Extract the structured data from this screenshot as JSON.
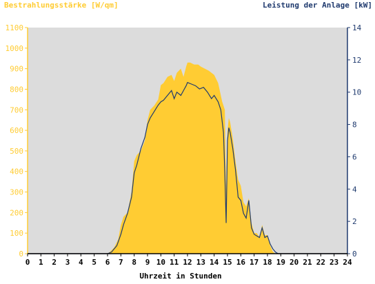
{
  "chart_data": {
    "type": "area",
    "left_axis_label": "Bestrahlungsstärke [W/qm]",
    "right_axis_label": "Leistung der Anlage [kW]",
    "xlabel": "Uhrzeit in Stunden",
    "xlim": [
      0,
      24
    ],
    "x_ticks": [
      "0",
      "1",
      "2",
      "3",
      "4",
      "5",
      "6",
      "7",
      "8",
      "9",
      "10",
      "11",
      "12",
      "13",
      "14",
      "15",
      "16",
      "17",
      "18",
      "19",
      "20",
      "21",
      "22",
      "23",
      "24"
    ],
    "left_ylim": [
      0,
      1100
    ],
    "left_ticks": [
      "0",
      "100",
      "200",
      "300",
      "400",
      "500",
      "600",
      "700",
      "800",
      "900",
      "1000",
      "1100"
    ],
    "right_ylim": [
      0,
      14
    ],
    "right_ticks": [
      "0",
      "2",
      "4",
      "6",
      "8",
      "10",
      "12",
      "14"
    ],
    "plot_background": "#dcdcdc",
    "colors": {
      "irradiance": "#ffcc33",
      "power": "#1f3a6e",
      "left_axis": "#ffcc33",
      "right_axis": "#1f3a6e"
    },
    "series": [
      {
        "axis": "left",
        "x": [
          0,
          6,
          6.2,
          6.5,
          6.8,
          7,
          7.2,
          7.5,
          7.8,
          8,
          8.2,
          8.5,
          8.8,
          9,
          9.2,
          9.5,
          9.8,
          10,
          10.2,
          10.5,
          10.8,
          11,
          11.2,
          11.5,
          11.7,
          11.9,
          12,
          12.2,
          12.5,
          12.8,
          13,
          13.3,
          13.6,
          14,
          14.3,
          14.6,
          14.8,
          14.9,
          15,
          15.1,
          15.2,
          15.4,
          15.6,
          15.8,
          16,
          16.2,
          16.4,
          16.6,
          16.8,
          17,
          17.2,
          17.4,
          17.6,
          17.8,
          18,
          18.2,
          18.4,
          18.6,
          18.8,
          19,
          24
        ],
        "values": [
          0,
          0,
          10,
          30,
          70,
          140,
          180,
          200,
          300,
          450,
          480,
          500,
          550,
          650,
          700,
          720,
          750,
          820,
          830,
          860,
          870,
          840,
          880,
          900,
          860,
          910,
          930,
          930,
          920,
          920,
          910,
          900,
          890,
          870,
          830,
          740,
          700,
          300,
          600,
          660,
          640,
          560,
          450,
          360,
          330,
          250,
          230,
          270,
          150,
          100,
          100,
          80,
          140,
          90,
          90,
          40,
          10,
          0,
          0,
          0,
          0
        ]
      },
      {
        "axis": "right",
        "x": [
          0,
          6,
          6.3,
          6.7,
          7,
          7.2,
          7.5,
          7.8,
          8,
          8.2,
          8.5,
          8.8,
          9,
          9.2,
          9.5,
          9.8,
          10,
          10.2,
          10.5,
          10.8,
          11,
          11.2,
          11.5,
          11.7,
          11.9,
          12,
          12.3,
          12.6,
          12.9,
          13.2,
          13.5,
          13.8,
          14,
          14.3,
          14.5,
          14.7,
          14.8,
          14.9,
          15,
          15.1,
          15.2,
          15.4,
          15.6,
          15.8,
          16,
          16.2,
          16.4,
          16.6,
          16.8,
          17,
          17.2,
          17.4,
          17.6,
          17.8,
          18,
          18.2,
          18.4,
          18.6,
          18.8,
          19,
          24
        ],
        "values": [
          0,
          0,
          0.1,
          0.5,
          1.2,
          1.8,
          2.5,
          3.5,
          5,
          5.5,
          6.5,
          7.2,
          8,
          8.4,
          8.8,
          9.2,
          9.4,
          9.5,
          9.8,
          10.1,
          9.6,
          10,
          9.8,
          10.1,
          10.4,
          10.6,
          10.5,
          10.4,
          10.2,
          10.3,
          10,
          9.6,
          9.8,
          9.4,
          8.9,
          7.5,
          5,
          1.9,
          7,
          7.8,
          7.5,
          6.5,
          5.2,
          3.5,
          3.3,
          2.5,
          2.2,
          3.3,
          1.6,
          1.2,
          1.1,
          1,
          1.6,
          1,
          1.1,
          0.6,
          0.3,
          0.1,
          0,
          0,
          0
        ]
      }
    ]
  }
}
